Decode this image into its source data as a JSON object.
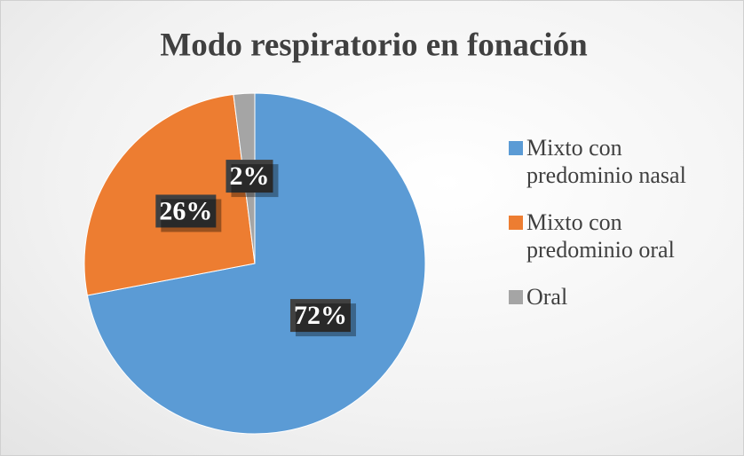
{
  "chart_data": {
    "type": "pie",
    "title": "Modo respiratorio en fonación",
    "categories": [
      "Mixto con predominio nasal",
      "Mixto con predominio oral",
      "Oral"
    ],
    "values": [
      72,
      26,
      2
    ],
    "value_labels": [
      "72%",
      "26%",
      "2%"
    ],
    "colors": [
      "#5b9bd5",
      "#ed7d31",
      "#a5a5a5"
    ],
    "legend": "right"
  }
}
